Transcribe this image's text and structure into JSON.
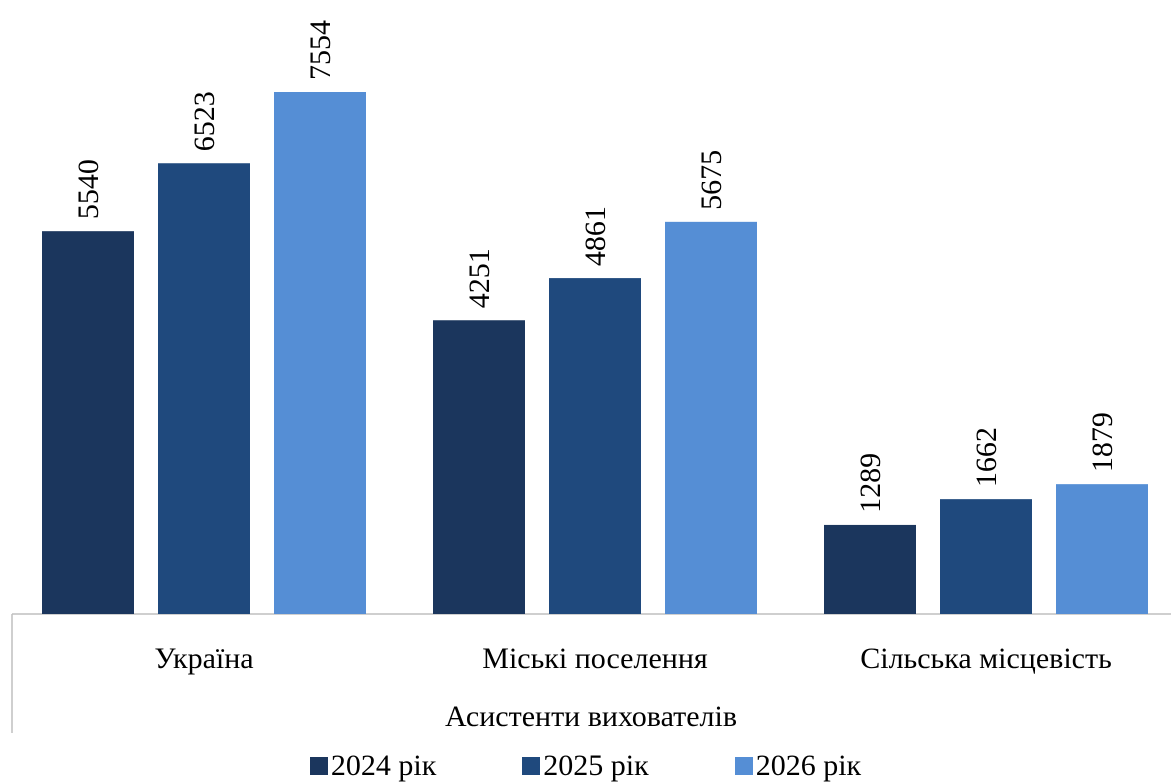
{
  "chart_data": {
    "type": "bar",
    "title": "",
    "xlabel": "Асистенти вихователів",
    "ylabel": "",
    "categories": [
      "Україна",
      "Міські поселення",
      "Сільська місцевість"
    ],
    "series": [
      {
        "name": "2024 рік",
        "color": "#1b365d",
        "values": [
          5540,
          4251,
          1289
        ]
      },
      {
        "name": "2025 рік",
        "color": "#1f497d",
        "values": [
          6523,
          4861,
          1662
        ]
      },
      {
        "name": "2026 рік",
        "color": "#558ed5",
        "values": [
          7554,
          5675,
          1879
        ]
      }
    ],
    "ylim": [
      0,
      7554
    ],
    "grid": false,
    "legend": "bottom",
    "data_labels": true,
    "data_label_rotation": "vertical"
  }
}
